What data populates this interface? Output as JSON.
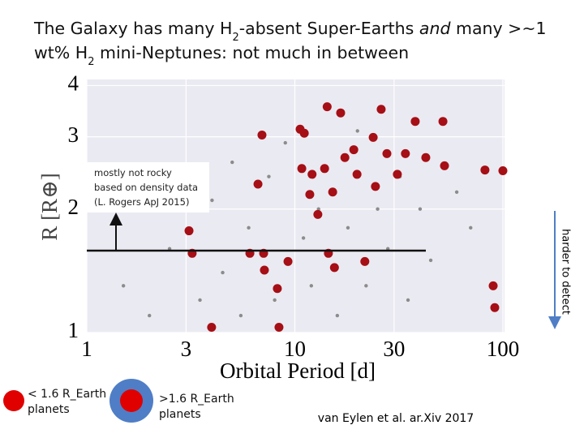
{
  "chart_data": {
    "type": "scatter",
    "title": [
      [
        "The Galaxy has many H",
        "2",
        "-absent Super-Earths ",
        "and",
        " many >~1"
      ],
      [
        "wt% H",
        "2",
        " mini-Neptunes: not much in between"
      ]
    ],
    "xlabel": "Orbital Period [d]",
    "ylabel": "R [R⊕]",
    "xscale": "log",
    "yscale": "log",
    "grid": true,
    "xlim": [
      1,
      100
    ],
    "ylim": [
      1,
      4.1
    ],
    "xticks": [
      1,
      3,
      10,
      30,
      100
    ],
    "yticks": [
      1,
      2,
      3,
      4
    ],
    "series": [
      {
        "color": "#8c8c8c",
        "x": [
          1.5,
          2,
          2.5,
          3.5,
          4,
          4.5,
          5,
          5.5,
          6,
          7.5,
          8,
          9,
          11,
          12,
          13,
          16,
          18,
          20,
          22,
          25,
          28,
          32,
          35,
          40,
          45,
          60,
          70
        ],
        "values": [
          1.3,
          1.1,
          1.6,
          1.2,
          2.1,
          1.4,
          2.6,
          1.1,
          1.8,
          2.4,
          1.2,
          2.9,
          1.7,
          1.3,
          2.0,
          1.1,
          1.8,
          3.1,
          1.3,
          2.0,
          1.6,
          2.4,
          1.2,
          2.0,
          1.5,
          2.2,
          1.8
        ]
      },
      {
        "color": "#a50f15",
        "x": [
          3.1,
          3.21,
          3.98,
          6.08,
          6.65,
          6.95,
          7.08,
          7.14,
          8.24,
          8.39,
          9.27,
          10.6,
          11.1,
          10.8,
          11.8,
          12.1,
          12.9,
          13.9,
          14.3,
          14.5,
          15.2,
          15.5,
          16.6,
          17.4,
          19.2,
          19.9,
          21.7,
          23.8,
          24.4,
          26.0,
          27.7,
          31.1,
          34.0,
          37.9,
          42.6,
          51.5,
          52.4,
          82.0,
          89.8,
          91.4,
          100
        ],
        "values": [
          1.77,
          1.56,
          1.03,
          1.56,
          2.3,
          3.03,
          1.56,
          1.42,
          1.28,
          1.03,
          1.49,
          3.13,
          3.06,
          2.51,
          2.17,
          2.43,
          1.94,
          2.51,
          3.55,
          1.56,
          2.2,
          1.44,
          3.43,
          2.67,
          2.79,
          2.43,
          1.49,
          2.99,
          2.27,
          3.5,
          2.73,
          2.43,
          2.73,
          3.27,
          2.67,
          3.27,
          2.55,
          2.49,
          1.3,
          1.15,
          2.48
        ]
      }
    ],
    "annotation_box": [
      "mostly not rocky",
      "based on density data",
      "(L. Rogers ApJ 2015)"
    ],
    "side_note": "harder to detect",
    "legend": [
      [
        "< 1.6 R_Earth",
        "planets"
      ],
      [
        ">1.6 R_Earth",
        "planets"
      ]
    ],
    "credit": "van Eylen et al. ar.Xiv 2017"
  }
}
